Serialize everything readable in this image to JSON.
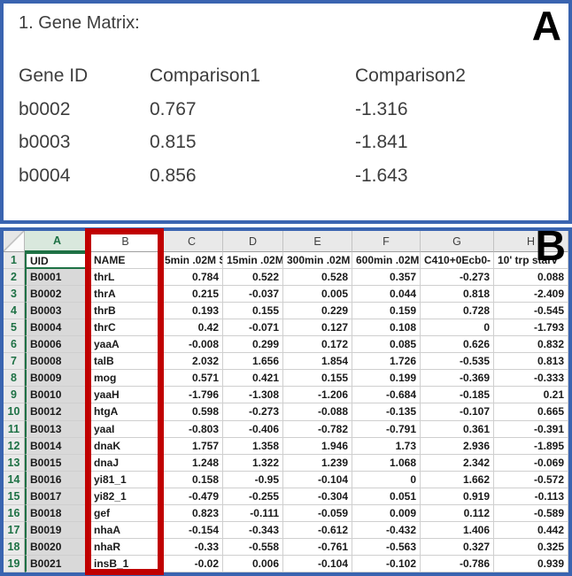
{
  "colors": {
    "annotation_red": "#c00000",
    "panel_border_blue": "#3a64b0",
    "excel_green": "#1e7145",
    "selected_column_fill": "#d9d9d9",
    "selected_header_fill": "#d9e8dd"
  },
  "panel_a": {
    "label": "A",
    "title": "1. Gene Matrix:",
    "table": {
      "headers": [
        "Gene ID",
        "Comparison1",
        "Comparison2"
      ],
      "rows": [
        [
          "b0002",
          "0.767",
          "-1.316"
        ],
        [
          "b0003",
          "0.815",
          "-1.841"
        ],
        [
          "b0004",
          "0.856",
          "-1.643"
        ]
      ]
    }
  },
  "panel_b": {
    "label": "B",
    "spreadsheet": {
      "column_letters": [
        "A",
        "B",
        "C",
        "D",
        "E",
        "F",
        "G",
        "H"
      ],
      "rows": [
        {
          "num": "1",
          "cells": [
            "UID",
            "NAME",
            "5min .02M S",
            "15min .02M",
            "300min .02M",
            "600min .02M",
            "C410+0Ecb0-",
            "10' trp starv"
          ]
        },
        {
          "num": "2",
          "cells": [
            "B0001",
            "thrL",
            "0.784",
            "0.522",
            "0.528",
            "0.357",
            "-0.273",
            "0.088"
          ]
        },
        {
          "num": "3",
          "cells": [
            "B0002",
            "thrA",
            "0.215",
            "-0.037",
            "0.005",
            "0.044",
            "0.818",
            "-2.409"
          ]
        },
        {
          "num": "4",
          "cells": [
            "B0003",
            "thrB",
            "0.193",
            "0.155",
            "0.229",
            "0.159",
            "0.728",
            "-0.545"
          ]
        },
        {
          "num": "5",
          "cells": [
            "B0004",
            "thrC",
            "0.42",
            "-0.071",
            "0.127",
            "0.108",
            "0",
            "-1.793"
          ]
        },
        {
          "num": "6",
          "cells": [
            "B0006",
            "yaaA",
            "-0.008",
            "0.299",
            "0.172",
            "0.085",
            "0.626",
            "0.832"
          ]
        },
        {
          "num": "7",
          "cells": [
            "B0008",
            "talB",
            "2.032",
            "1.656",
            "1.854",
            "1.726",
            "-0.535",
            "0.813"
          ]
        },
        {
          "num": "8",
          "cells": [
            "B0009",
            "mog",
            "0.571",
            "0.421",
            "0.155",
            "0.199",
            "-0.369",
            "-0.333"
          ]
        },
        {
          "num": "9",
          "cells": [
            "B0010",
            "yaaH",
            "-1.796",
            "-1.308",
            "-1.206",
            "-0.684",
            "-0.185",
            "0.21"
          ]
        },
        {
          "num": "10",
          "cells": [
            "B0012",
            "htgA",
            "0.598",
            "-0.273",
            "-0.088",
            "-0.135",
            "-0.107",
            "0.665"
          ]
        },
        {
          "num": "11",
          "cells": [
            "B0013",
            "yaaI",
            "-0.803",
            "-0.406",
            "-0.782",
            "-0.791",
            "0.361",
            "-0.391"
          ]
        },
        {
          "num": "12",
          "cells": [
            "B0014",
            "dnaK",
            "1.757",
            "1.358",
            "1.946",
            "1.73",
            "2.936",
            "-1.895"
          ]
        },
        {
          "num": "13",
          "cells": [
            "B0015",
            "dnaJ",
            "1.248",
            "1.322",
            "1.239",
            "1.068",
            "2.342",
            "-0.069"
          ]
        },
        {
          "num": "14",
          "cells": [
            "B0016",
            "yi81_1",
            "0.158",
            "-0.95",
            "-0.104",
            "0",
            "1.662",
            "-0.572"
          ]
        },
        {
          "num": "15",
          "cells": [
            "B0017",
            "yi82_1",
            "-0.479",
            "-0.255",
            "-0.304",
            "0.051",
            "0.919",
            "-0.113"
          ]
        },
        {
          "num": "16",
          "cells": [
            "B0018",
            "gef",
            "0.823",
            "-0.111",
            "-0.059",
            "0.009",
            "0.112",
            "-0.589"
          ]
        },
        {
          "num": "17",
          "cells": [
            "B0019",
            "nhaA",
            "-0.154",
            "-0.343",
            "-0.612",
            "-0.432",
            "1.406",
            "0.442"
          ]
        },
        {
          "num": "18",
          "cells": [
            "B0020",
            "nhaR",
            "-0.33",
            "-0.558",
            "-0.761",
            "-0.563",
            "0.327",
            "0.325"
          ]
        },
        {
          "num": "19",
          "cells": [
            "B0021",
            "insB_1",
            "-0.02",
            "0.006",
            "-0.104",
            "-0.102",
            "-0.786",
            "0.939"
          ]
        }
      ]
    }
  }
}
